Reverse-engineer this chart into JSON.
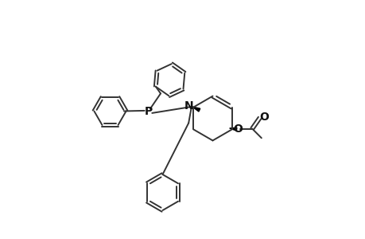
{
  "background": "#ffffff",
  "line_color": "#333333",
  "lw": 1.4,
  "figsize": [
    4.6,
    3.0
  ],
  "dpi": 100,
  "label_P": "P",
  "label_N": "N",
  "label_O_ester": "O",
  "label_O_carbonyl": "O"
}
